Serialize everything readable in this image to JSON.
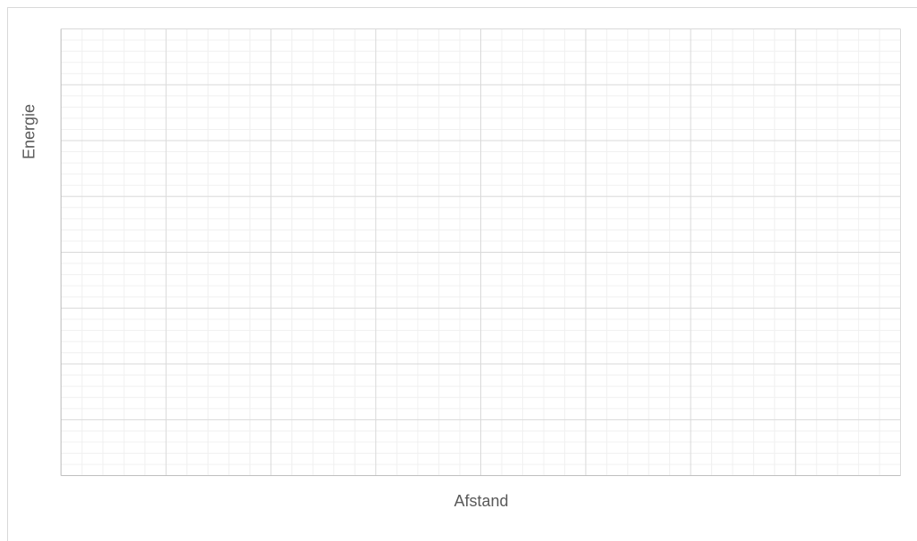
{
  "chart_data": {
    "type": "scatter",
    "title": "",
    "xlabel": "Afstand",
    "ylabel": "Energie",
    "series": [],
    "grid": true,
    "minor_grid": true,
    "legend": "none"
  }
}
